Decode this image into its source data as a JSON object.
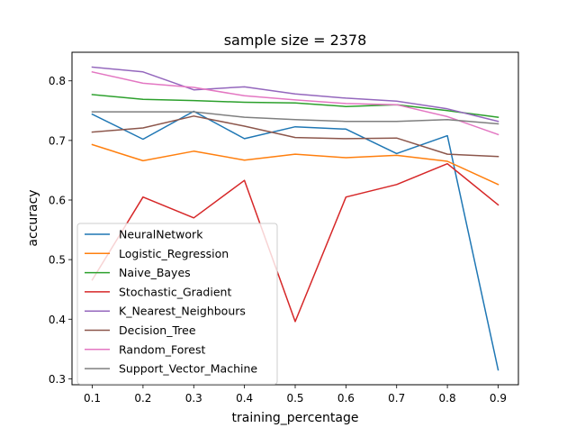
{
  "chart_data": {
    "type": "line",
    "title": "sample size = 2378",
    "xlabel": "training_percentage",
    "ylabel": "accuracy",
    "x": [
      0.1,
      0.2,
      0.3,
      0.4,
      0.5,
      0.6,
      0.7,
      0.8,
      0.9
    ],
    "xlim": [
      0.06,
      0.94
    ],
    "ylim": [
      0.29,
      0.848
    ],
    "xticks": [
      "0.1",
      "0.2",
      "0.3",
      "0.4",
      "0.5",
      "0.6",
      "0.7",
      "0.8",
      "0.9"
    ],
    "yticks": [
      "0.3",
      "0.4",
      "0.5",
      "0.6",
      "0.7",
      "0.8"
    ],
    "grid": false,
    "legend_position": "lower-left",
    "series": [
      {
        "name": "NeuralNetwork",
        "color": "#1f77b4",
        "values": [
          0.744,
          0.702,
          0.749,
          0.703,
          0.723,
          0.719,
          0.678,
          0.708,
          0.315
        ]
      },
      {
        "name": "Logistic_Regression",
        "color": "#ff7f0e",
        "values": [
          0.693,
          0.666,
          0.682,
          0.667,
          0.677,
          0.671,
          0.675,
          0.665,
          0.626
        ]
      },
      {
        "name": "Naive_Bayes",
        "color": "#2ca02c",
        "values": [
          0.777,
          0.769,
          0.767,
          0.764,
          0.763,
          0.757,
          0.76,
          0.75,
          0.739
        ]
      },
      {
        "name": "Stochastic_Gradient",
        "color": "#d62728",
        "values": [
          0.466,
          0.605,
          0.57,
          0.633,
          0.396,
          0.605,
          0.626,
          0.661,
          0.592
        ]
      },
      {
        "name": "K_Nearest_Neighbours",
        "color": "#9467bd",
        "values": [
          0.823,
          0.815,
          0.785,
          0.79,
          0.778,
          0.771,
          0.766,
          0.753,
          0.732
        ]
      },
      {
        "name": "Decision_Tree",
        "color": "#8c564b",
        "values": [
          0.714,
          0.721,
          0.741,
          0.724,
          0.705,
          0.703,
          0.704,
          0.677,
          0.673
        ]
      },
      {
        "name": "Random_Forest",
        "color": "#e377c2",
        "values": [
          0.815,
          0.796,
          0.789,
          0.775,
          0.768,
          0.762,
          0.76,
          0.74,
          0.71
        ]
      },
      {
        "name": "Support_Vector_Machine",
        "color": "#7f7f7f",
        "values": [
          0.748,
          0.748,
          0.748,
          0.739,
          0.735,
          0.732,
          0.732,
          0.735,
          0.728
        ]
      }
    ]
  }
}
